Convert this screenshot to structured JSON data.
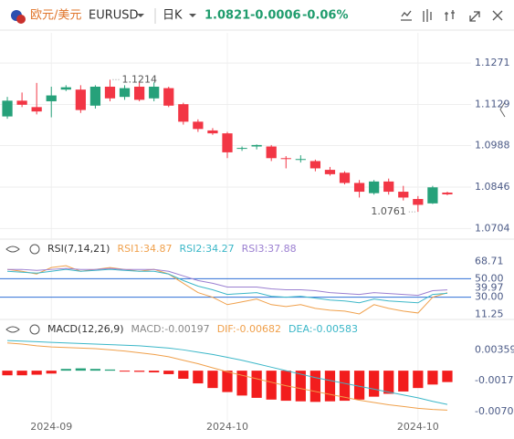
{
  "header": {
    "name": "欧元/美元",
    "symbol": "EURUSD",
    "period": "日K",
    "price": "1.0821",
    "change": "-0.0006",
    "change_pct": "-0.06%"
  },
  "chart_data": [
    {
      "type": "candlestick",
      "categories": [
        null,
        null,
        null,
        "2024-09",
        null,
        null,
        null,
        null,
        null,
        null,
        null,
        null,
        null,
        null,
        null,
        "2024-10",
        null,
        null,
        null,
        null,
        null,
        null,
        null,
        null,
        null,
        null,
        null,
        null,
        "2024-10",
        null,
        null
      ],
      "open": [
        1.1088,
        1.1142,
        1.112,
        1.114,
        1.118,
        1.118,
        1.1125,
        1.119,
        1.1155,
        1.119,
        1.115,
        1.1185,
        1.113,
        1.107,
        1.104,
        1.103,
        1.0978,
        1.0985,
        1.0985,
        1.0945,
        1.094,
        1.0935,
        1.0905,
        1.0895,
        1.086,
        1.0825,
        1.0865,
        1.083,
        1.0805,
        1.079,
        1.0827
      ],
      "high": [
        1.1155,
        1.117,
        1.1203,
        1.119,
        1.1195,
        1.1195,
        1.1195,
        1.1214,
        1.1195,
        1.1205,
        1.1205,
        1.119,
        1.1135,
        1.1078,
        1.1048,
        1.1035,
        1.0985,
        1.0992,
        1.099,
        1.0952,
        1.0955,
        1.094,
        1.0915,
        1.09,
        1.087,
        1.087,
        1.0875,
        1.085,
        1.0815,
        1.085,
        1.083
      ],
      "low": [
        1.108,
        1.112,
        1.1095,
        1.1085,
        1.1175,
        1.11,
        1.1115,
        1.114,
        1.1145,
        1.114,
        1.114,
        1.112,
        1.106,
        1.1035,
        1.1025,
        1.0945,
        1.097,
        1.0975,
        1.0935,
        1.091,
        1.093,
        1.09,
        1.0885,
        1.0855,
        1.081,
        1.082,
        1.082,
        1.08,
        1.0761,
        1.0788,
        1.0818
      ],
      "close": [
        1.1142,
        1.1128,
        1.1105,
        1.116,
        1.1188,
        1.111,
        1.119,
        1.115,
        1.1185,
        1.1145,
        1.119,
        1.1125,
        1.107,
        1.1045,
        1.103,
        1.0965,
        1.098,
        1.099,
        1.0945,
        1.0943,
        1.0942,
        1.091,
        1.089,
        1.086,
        1.083,
        1.0865,
        1.083,
        1.081,
        1.0785,
        1.0845,
        1.0821
      ],
      "up_color": "#26a17a",
      "down_color": "#f23645",
      "ylim": [
        1.068,
        1.1362
      ],
      "yticks": [
        1.1271,
        1.1129,
        1.0988,
        1.0846,
        1.0704
      ],
      "grid": true,
      "annotations": [
        {
          "text": "1.1214",
          "index": 7,
          "value": 1.1214
        },
        {
          "text": "1.0761",
          "index": 28,
          "value": 1.0761
        }
      ]
    },
    {
      "type": "line",
      "title": "RSI(7,14,21)",
      "series": [
        {
          "name": "RSI1:34.87",
          "color": "#f0a04b",
          "values": [
            60,
            58,
            55,
            62,
            64,
            58,
            60,
            62,
            60,
            58,
            60,
            55,
            45,
            35,
            30,
            22,
            25,
            28,
            22,
            20,
            22,
            18,
            16,
            15,
            12,
            22,
            18,
            15,
            13,
            30,
            34.87
          ]
        },
        {
          "name": "RSI2:34.27",
          "color": "#3bb7c8",
          "values": [
            58,
            57,
            56,
            58,
            60,
            58,
            59,
            60,
            59,
            58,
            58,
            55,
            48,
            42,
            38,
            33,
            34,
            35,
            31,
            30,
            31,
            29,
            27,
            26,
            24,
            28,
            26,
            25,
            24,
            33,
            34.27
          ]
        },
        {
          "name": "RSI3:37.88",
          "color": "#9b7fd1",
          "values": [
            60,
            60,
            59,
            60,
            61,
            60,
            60,
            61,
            60,
            60,
            60,
            58,
            53,
            48,
            45,
            41,
            41,
            41,
            39,
            38,
            38,
            37,
            35,
            34,
            33,
            35,
            34,
            33,
            32,
            37,
            37.88
          ]
        }
      ],
      "ylim": [
        8,
        72
      ],
      "yticks": [
        68.71,
        {
          "value": 50,
          "label": "50.00"
        },
        39.97,
        {
          "value": 30,
          "label": "30.00"
        },
        11.25
      ],
      "hlines": [
        50,
        30
      ],
      "hline_color": "#2f6fd6"
    },
    {
      "type": "macd",
      "title": "MACD(12,26,9)",
      "series": [
        {
          "name": "MACD:-0.00197",
          "up_color": "#26a17a",
          "down_color": "#f21d1d",
          "values": [
            -0.0008,
            -0.0008,
            -0.0007,
            -0.0005,
            0.0003,
            0.0004,
            0.0003,
            0.0002,
            -0.0001,
            -0.0002,
            -0.0003,
            -0.0006,
            -0.0014,
            -0.0022,
            -0.003,
            -0.0037,
            -0.0043,
            -0.0047,
            -0.005,
            -0.0052,
            -0.0053,
            -0.0054,
            -0.0053,
            -0.0052,
            -0.005,
            -0.0045,
            -0.004,
            -0.0036,
            -0.003,
            -0.0024,
            -0.00197
          ]
        },
        {
          "name": "DIF:-0.00682",
          "color": "#f0a04b",
          "values": [
            0.0048,
            0.0046,
            0.0043,
            0.0041,
            0.004,
            0.0039,
            0.0038,
            0.0036,
            0.0034,
            0.0031,
            0.0028,
            0.0024,
            0.0018,
            0.0012,
            0.0005,
            -0.0002,
            -0.0008,
            -0.0014,
            -0.002,
            -0.0026,
            -0.0031,
            -0.0036,
            -0.0041,
            -0.0046,
            -0.0051,
            -0.0055,
            -0.0059,
            -0.0062,
            -0.0065,
            -0.0067,
            -0.00682
          ]
        },
        {
          "name": "DEA:-0.00583",
          "color": "#3bb7c8",
          "values": [
            0.0052,
            0.0051,
            0.005,
            0.0049,
            0.0048,
            0.0047,
            0.0046,
            0.0045,
            0.0044,
            0.0043,
            0.0041,
            0.0039,
            0.0036,
            0.0032,
            0.0028,
            0.0023,
            0.0018,
            0.0012,
            0.0006,
            0.0,
            -0.0006,
            -0.0012,
            -0.0017,
            -0.0022,
            -0.0027,
            -0.0032,
            -0.0037,
            -0.0042,
            -0.0047,
            -0.0053,
            -0.00583
          ]
        }
      ],
      "ylim": [
        -0.0085,
        0.0057
      ],
      "yticks": [
        0.00359,
        -0.00175,
        -0.00709
      ]
    }
  ]
}
